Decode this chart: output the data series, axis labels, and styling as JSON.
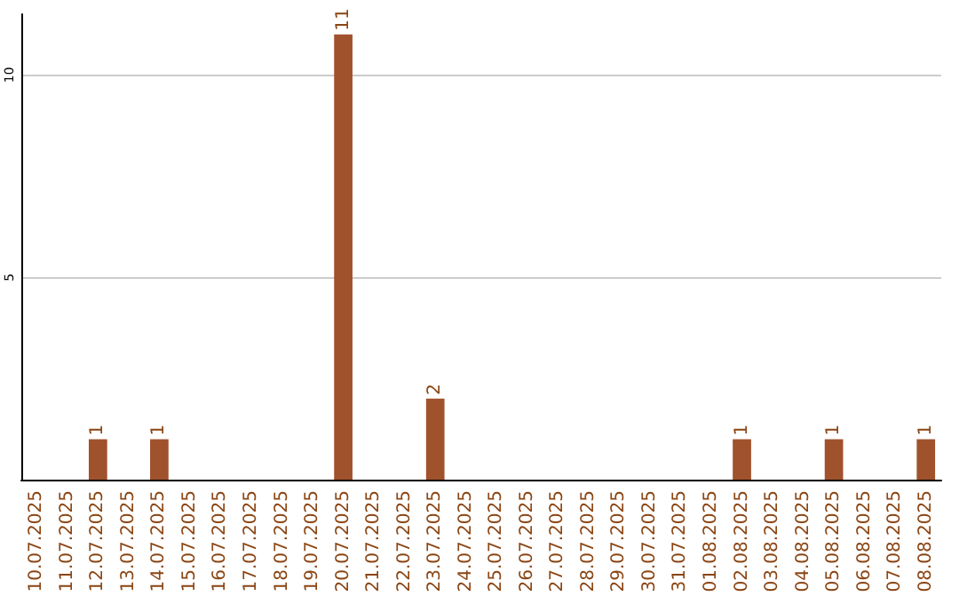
{
  "chart_data": {
    "type": "bar",
    "categories": [
      "10.07.2025",
      "11.07.2025",
      "12.07.2025",
      "13.07.2025",
      "14.07.2025",
      "15.07.2025",
      "16.07.2025",
      "17.07.2025",
      "18.07.2025",
      "19.07.2025",
      "20.07.2025",
      "21.07.2025",
      "22.07.2025",
      "23.07.2025",
      "24.07.2025",
      "25.07.2025",
      "26.07.2025",
      "27.07.2025",
      "28.07.2025",
      "29.07.2025",
      "30.07.2025",
      "31.07.2025",
      "01.08.2025",
      "02.08.2025",
      "03.08.2025",
      "04.08.2025",
      "05.08.2025",
      "06.08.2025",
      "07.08.2025",
      "08.08.2025"
    ],
    "values": [
      0,
      0,
      1,
      0,
      1,
      0,
      0,
      0,
      0,
      0,
      11,
      0,
      0,
      2,
      0,
      0,
      0,
      0,
      0,
      0,
      0,
      0,
      0,
      1,
      0,
      0,
      1,
      0,
      0,
      1
    ],
    "value_labels": [
      null,
      null,
      "1",
      null,
      "1",
      null,
      null,
      null,
      null,
      null,
      "11",
      null,
      null,
      "2",
      null,
      null,
      null,
      null,
      null,
      null,
      null,
      null,
      null,
      "1",
      null,
      null,
      "1",
      null,
      null,
      "1"
    ],
    "color": "#a0522d",
    "ylim": [
      0,
      11.5
    ],
    "yticks": [
      5,
      10
    ],
    "grid": "y"
  }
}
